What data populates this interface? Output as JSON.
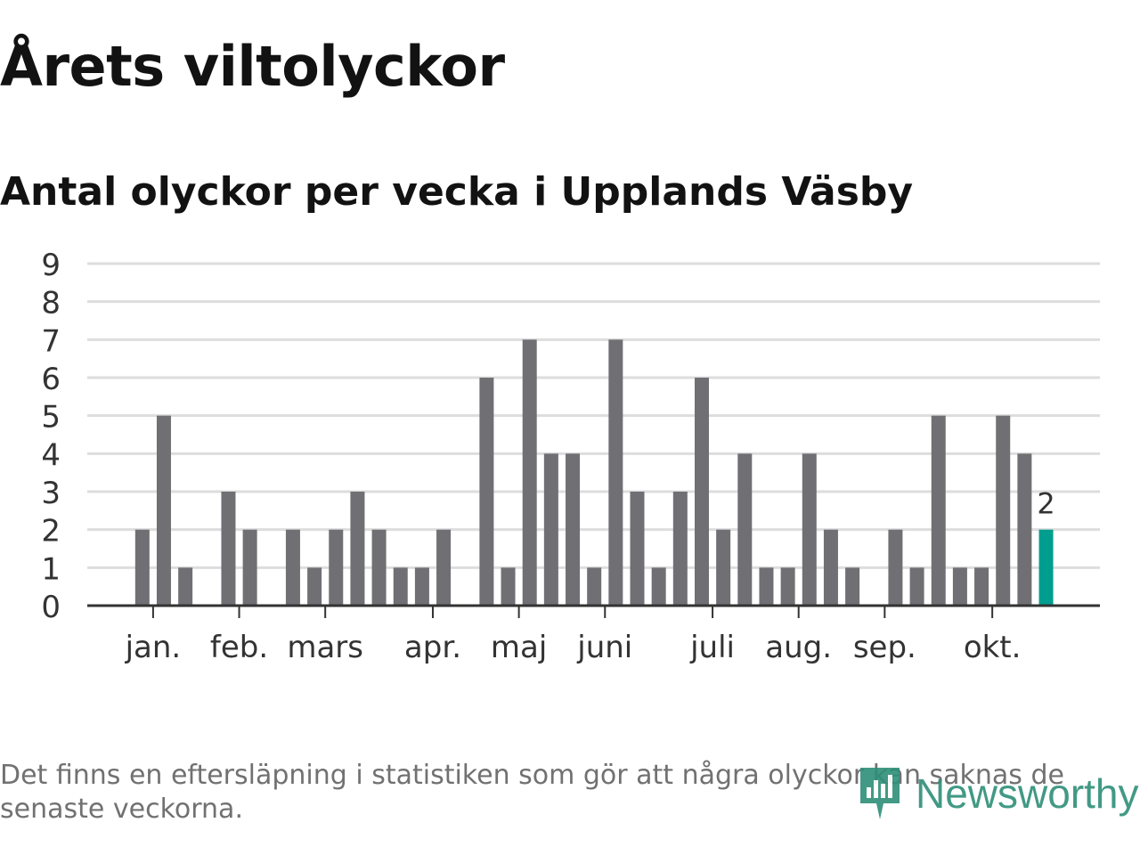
{
  "title": "Årets viltolyckor",
  "subtitle": "Antal olyckor per vecka i Upplands Väsby",
  "footnote": "Det finns en eftersläpning i statistiken som gör att några olyckor kan saknas de senaste veckorna.",
  "logo": {
    "text": "Newsworthy",
    "icon": "newsworthy-logo-icon"
  },
  "colors": {
    "bar": "#706f74",
    "highlight": "#009e8e",
    "grid": "#dddddd",
    "axis": "#333333",
    "text": "#333333",
    "logo": "#2e8f78"
  },
  "chart_data": {
    "type": "bar",
    "title": "Antal olyckor per vecka i Upplands Väsby",
    "xlabel": "",
    "ylabel": "",
    "ylim": [
      0,
      9
    ],
    "yticks": [
      0,
      1,
      2,
      3,
      4,
      5,
      6,
      7,
      8,
      9
    ],
    "grid": true,
    "week_count": 45,
    "values": [
      null,
      null,
      2,
      5,
      1,
      null,
      3,
      2,
      null,
      2,
      1,
      2,
      3,
      2,
      1,
      1,
      2,
      null,
      6,
      1,
      7,
      4,
      4,
      1,
      7,
      3,
      1,
      3,
      6,
      2,
      4,
      1,
      1,
      4,
      2,
      1,
      null,
      2,
      1,
      5,
      1,
      1,
      5,
      4,
      2
    ],
    "highlight_index": 44,
    "highlight_label": "2",
    "month_ticks": [
      {
        "label": "jan.",
        "index": 2.5
      },
      {
        "label": "feb.",
        "index": 6.5
      },
      {
        "label": "mars",
        "index": 10.5
      },
      {
        "label": "apr.",
        "index": 15.5
      },
      {
        "label": "maj",
        "index": 19.5
      },
      {
        "label": "juni",
        "index": 23.5
      },
      {
        "label": "juli",
        "index": 28.5
      },
      {
        "label": "aug.",
        "index": 32.5
      },
      {
        "label": "sep.",
        "index": 36.5
      },
      {
        "label": "okt.",
        "index": 41.5
      }
    ]
  }
}
